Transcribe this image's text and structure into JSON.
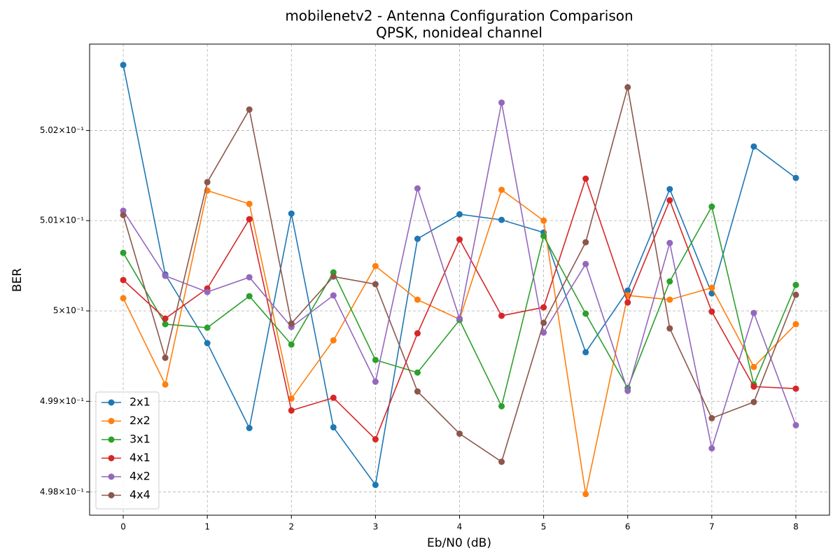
{
  "chart_data": {
    "type": "line",
    "title": "mobilenetv2 - Antenna Configuration Comparison",
    "subtitle": "QPSK, nonideal channel",
    "x_label": "Eb/N0 (dB)",
    "y_label": "BER",
    "x": [
      0,
      0.5,
      1,
      1.5,
      2,
      2.5,
      3,
      3.5,
      4,
      4.5,
      5,
      5.5,
      6,
      6.5,
      7,
      7.5,
      8
    ],
    "series": [
      {
        "name": "2x1",
        "color": "#1f77b4",
        "values": [
          0.502729,
          0.500403,
          0.499643,
          0.498705,
          0.501078,
          0.498713,
          0.498078,
          0.500798,
          0.50107,
          0.501008,
          0.500868,
          0.499543,
          0.500225,
          0.501349,
          0.500194,
          0.501822,
          0.501473
        ]
      },
      {
        "name": "2x2",
        "color": "#ff7f0e",
        "values": [
          0.50014,
          0.499186,
          0.501333,
          0.501186,
          0.499031,
          0.499674,
          0.500496,
          0.500124,
          0.499907,
          0.501341,
          0.501,
          0.497977,
          0.500171,
          0.500124,
          0.500256,
          0.49938,
          0.499853
        ]
      },
      {
        "name": "3x1",
        "color": "#2ca02c",
        "values": [
          0.500643,
          0.499853,
          0.499814,
          0.500163,
          0.499628,
          0.500426,
          0.499457,
          0.499318,
          0.499899,
          0.498946,
          0.500829,
          0.499969,
          0.499147,
          0.500326,
          0.501155,
          0.499186,
          0.500287
        ]
      },
      {
        "name": "4x1",
        "color": "#d62728",
        "values": [
          0.500341,
          0.499915,
          0.500248,
          0.501016,
          0.498899,
          0.499039,
          0.498581,
          0.499752,
          0.500791,
          0.499946,
          0.500039,
          0.501465,
          0.500093,
          0.501225,
          0.499992,
          0.499163,
          0.49914
        ]
      },
      {
        "name": "4x2",
        "color": "#9467bd",
        "values": [
          0.501109,
          0.500388,
          0.500209,
          0.500372,
          0.499822,
          0.500171,
          0.499217,
          0.501357,
          0.499915,
          0.50231,
          0.49976,
          0.500519,
          0.499116,
          0.500752,
          0.498481,
          0.499977,
          0.498736
        ]
      },
      {
        "name": "4x4",
        "color": "#8c564b",
        "values": [
          0.501062,
          0.499481,
          0.501426,
          0.502233,
          0.49986,
          0.50038,
          0.500295,
          0.499109,
          0.498643,
          0.498333,
          0.499868,
          0.50076,
          0.502481,
          0.499806,
          0.498814,
          0.498992,
          0.500178
        ]
      }
    ],
    "xlim": [
      -0.4,
      8.4
    ],
    "ylim": [
      0.497744,
      0.502961
    ],
    "xticks": [
      0,
      1,
      2,
      3,
      4,
      5,
      6,
      7,
      8
    ],
    "yticks": [
      {
        "value": 0.498,
        "label": "4.98×10⁻¹"
      },
      {
        "value": 0.499,
        "label": "4.99×10⁻¹"
      },
      {
        "value": 0.5,
        "label": "5×10⁻¹"
      },
      {
        "value": 0.501,
        "label": "5.01×10⁻¹"
      },
      {
        "value": 0.502,
        "label": "5.02×10⁻¹"
      }
    ],
    "y_log": true,
    "grid": true,
    "legend_position": "lower left"
  }
}
